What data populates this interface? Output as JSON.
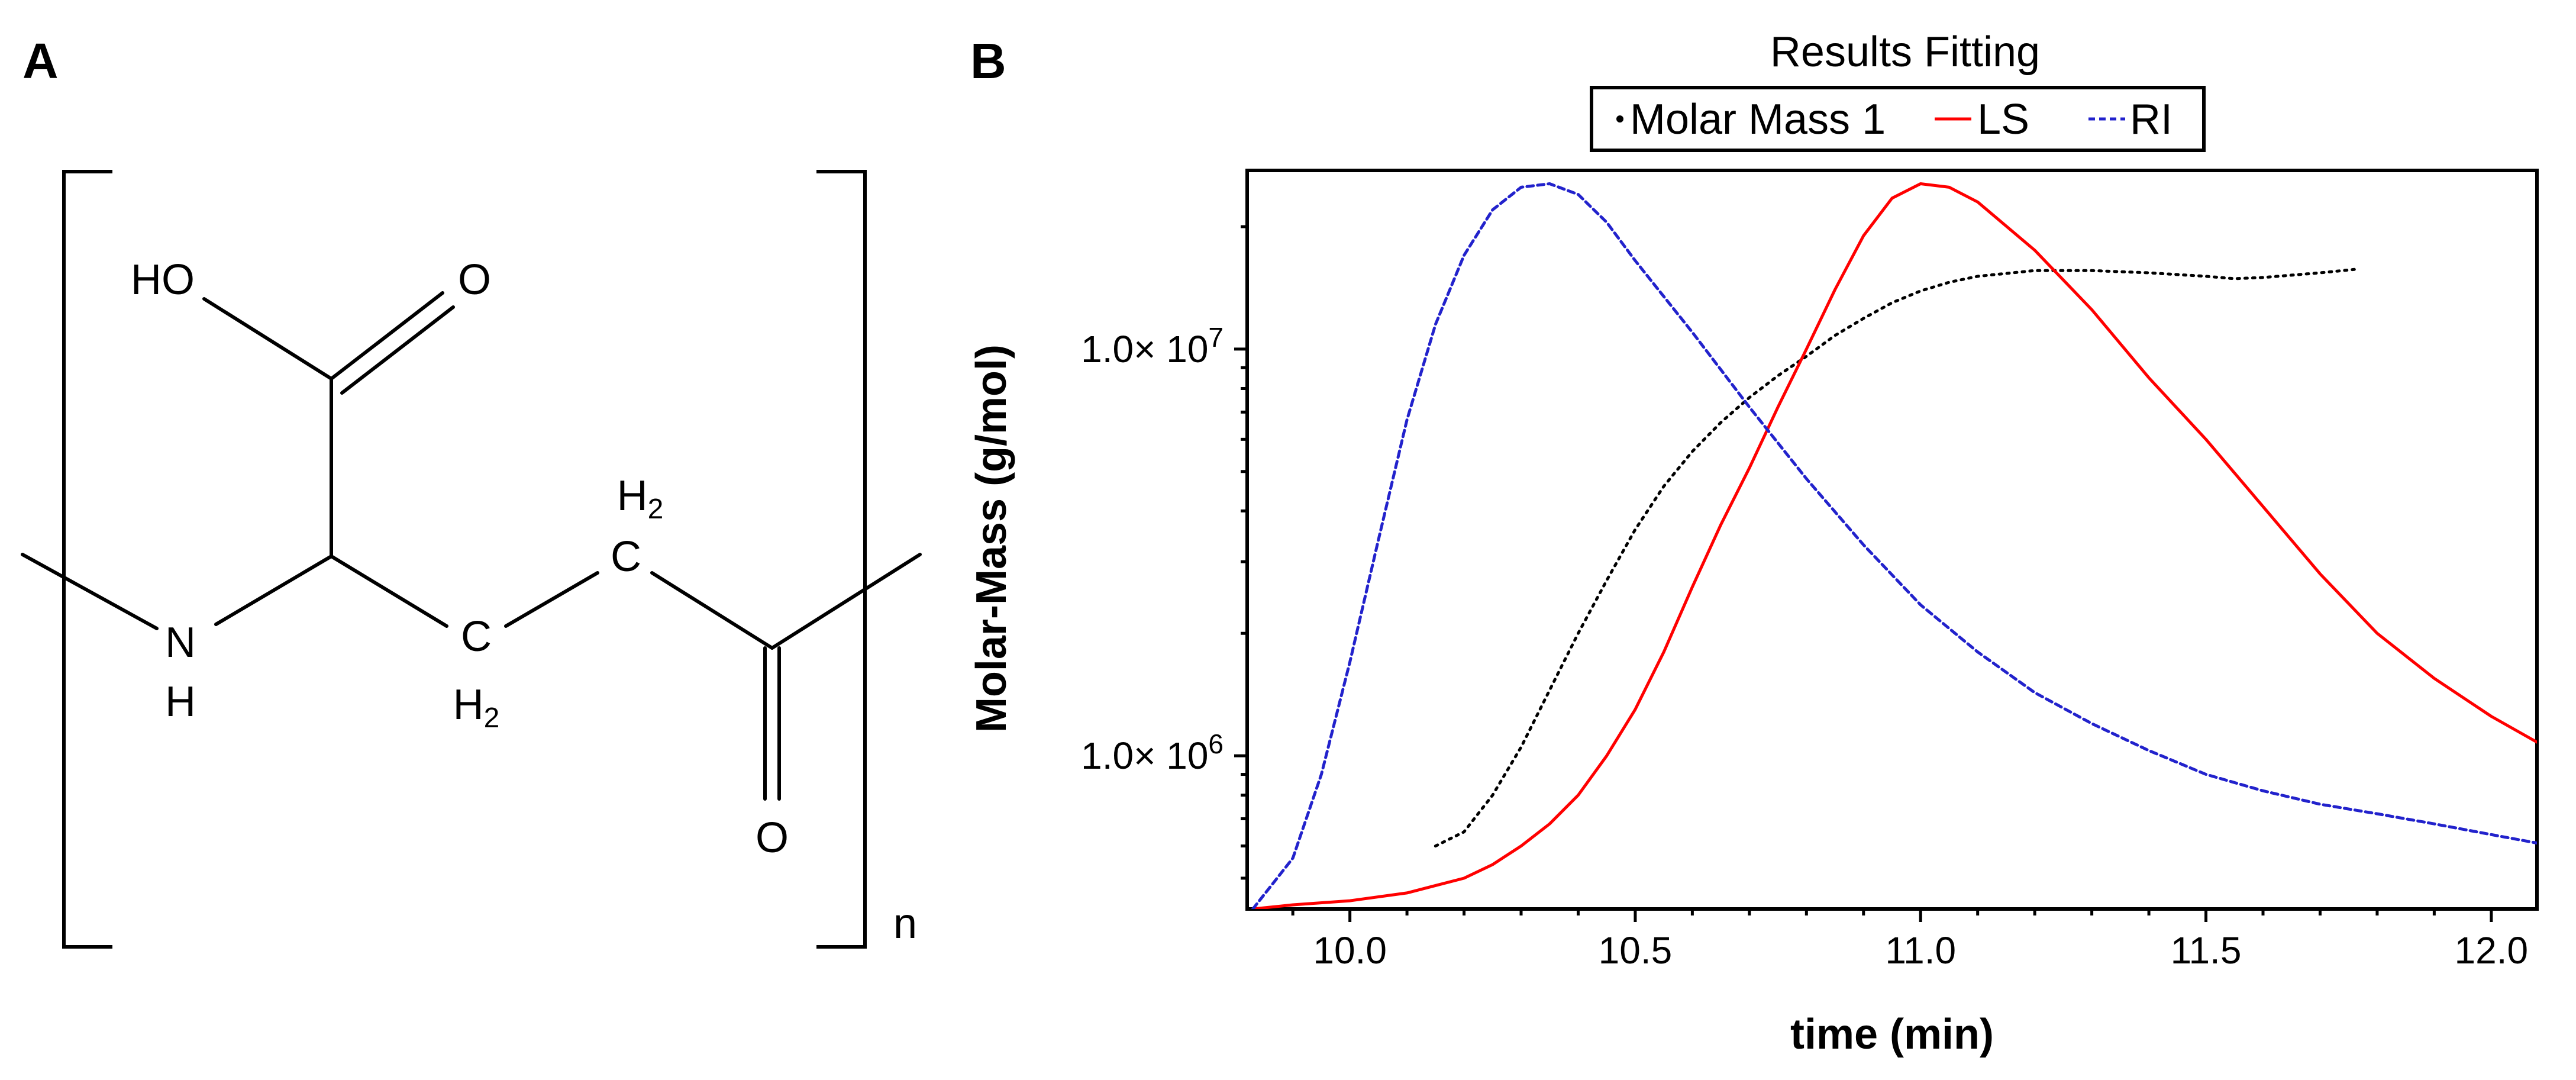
{
  "panels": {
    "a": {
      "label": "A"
    },
    "b": {
      "label": "B"
    }
  },
  "structure": {
    "atoms": {
      "ho": "HO",
      "o_carboxyl": "O",
      "n": "N",
      "nh_h": "H",
      "c1": "C",
      "c1_h": "H",
      "c1_sub": "2",
      "c2": "C",
      "c2_h": "H",
      "c2_sub": "2",
      "o_carbonyl": "O"
    },
    "repeat_label": "n"
  },
  "chart_data": {
    "type": "line",
    "title": "Results Fitting",
    "xlabel": "time (min)",
    "ylabel": "Molar-Mass (g/mol)",
    "x_scale": "linear",
    "y_scale": "log",
    "xlim": [
      9.82,
      12.08
    ],
    "ylim": [
      420000,
      27500000
    ],
    "grid": false,
    "legend_position": "top-center",
    "x_ticks": [
      10.0,
      10.5,
      11.0,
      11.5,
      12.0
    ],
    "x_tick_labels": [
      "10.0",
      "10.5",
      "11.0",
      "11.5",
      "12.0"
    ],
    "y_ticks": [
      {
        "value": 10000000,
        "mantissa": "1.0×",
        "base": "10",
        "exponent": "7"
      },
      {
        "value": 1000000,
        "mantissa": "1.0×",
        "base": "10",
        "exponent": "6"
      }
    ],
    "series": [
      {
        "name": "Molar Mass 1",
        "color": "#000000",
        "style": "dotted",
        "x": [
          10.15,
          10.2,
          10.25,
          10.3,
          10.35,
          10.4,
          10.45,
          10.5,
          10.55,
          10.6,
          10.65,
          10.7,
          10.75,
          10.8,
          10.85,
          10.9,
          10.95,
          11.0,
          11.05,
          11.1,
          11.2,
          11.3,
          11.4,
          11.5,
          11.55,
          11.6,
          11.7,
          11.76
        ],
        "y": [
          600000,
          650000,
          800000,
          1050000,
          1450000,
          2000000,
          2700000,
          3600000,
          4600000,
          5600000,
          6600000,
          7600000,
          8600000,
          9600000,
          10800000,
          11900000,
          13000000,
          13900000,
          14600000,
          15100000,
          15600000,
          15600000,
          15400000,
          15100000,
          14900000,
          15000000,
          15400000,
          15700000
        ]
      },
      {
        "name": "LS",
        "color": "#ff0000",
        "style": "solid",
        "x": [
          9.83,
          9.9,
          10.0,
          10.1,
          10.2,
          10.25,
          10.3,
          10.35,
          10.4,
          10.45,
          10.5,
          10.55,
          10.6,
          10.65,
          10.7,
          10.75,
          10.8,
          10.85,
          10.9,
          10.95,
          11.0,
          11.05,
          11.1,
          11.2,
          11.3,
          11.4,
          11.5,
          11.6,
          11.7,
          11.8,
          11.9,
          12.0,
          12.08
        ],
        "y": [
          420000,
          430000,
          440000,
          460000,
          500000,
          540000,
          600000,
          680000,
          800000,
          1000000,
          1300000,
          1800000,
          2600000,
          3700000,
          5100000,
          7200000,
          10000000,
          14000000,
          19000000,
          23500000,
          25500000,
          25000000,
          23000000,
          17500000,
          12500000,
          8500000,
          6000000,
          4100000,
          2800000,
          2000000,
          1550000,
          1250000,
          1080000
        ]
      },
      {
        "name": "RI",
        "color": "#2222cc",
        "style": "dashed",
        "x": [
          9.83,
          9.9,
          9.95,
          10.0,
          10.05,
          10.1,
          10.15,
          10.2,
          10.25,
          10.3,
          10.35,
          10.4,
          10.45,
          10.5,
          10.6,
          10.7,
          10.8,
          10.9,
          11.0,
          11.1,
          11.2,
          11.3,
          11.4,
          11.5,
          11.6,
          11.7,
          11.8,
          11.9,
          12.0,
          12.08
        ],
        "y": [
          420000,
          560000,
          900000,
          1700000,
          3400000,
          6700000,
          11500000,
          17000000,
          22000000,
          25000000,
          25500000,
          24000000,
          20500000,
          16500000,
          11000000,
          7200000,
          4800000,
          3300000,
          2350000,
          1800000,
          1430000,
          1200000,
          1030000,
          900000,
          820000,
          760000,
          720000,
          680000,
          640000,
          610000
        ]
      }
    ]
  }
}
